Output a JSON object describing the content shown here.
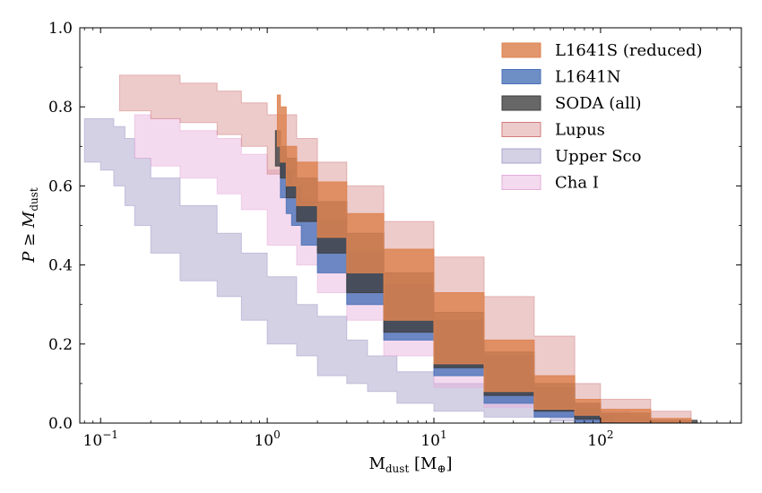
{
  "chart_data": {
    "type": "area",
    "xscale": "log",
    "xlim": [
      0.075,
      700
    ],
    "ylim": [
      0,
      1.0
    ],
    "xlabel": {
      "base": "M",
      "sub": "dust",
      "unit_open": " [M",
      "unit_sub": "⊕",
      "unit_close": "]"
    },
    "ylabel": {
      "lead": "P ≥ M",
      "sub": "dust"
    },
    "x_ticks": [
      {
        "value": 0.1,
        "base": "10",
        "exp": "−1"
      },
      {
        "value": 1,
        "base": "10",
        "exp": "0"
      },
      {
        "value": 10,
        "base": "10",
        "exp": "1"
      },
      {
        "value": 100,
        "base": "10",
        "exp": "2"
      }
    ],
    "y_ticks": [
      "0.0",
      "0.2",
      "0.4",
      "0.6",
      "0.8",
      "1.0"
    ],
    "grid": false,
    "legend_position": "top-right",
    "series": [
      {
        "name": "Upper Sco",
        "color": "#a9a4cc",
        "opacity": 0.5,
        "points": [
          [
            0.08,
            0.77,
            0.66
          ],
          [
            0.1,
            0.77,
            0.66
          ],
          [
            0.12,
            0.75,
            0.64
          ],
          [
            0.14,
            0.72,
            0.6
          ],
          [
            0.16,
            0.67,
            0.55
          ],
          [
            0.2,
            0.62,
            0.5
          ],
          [
            0.3,
            0.55,
            0.43
          ],
          [
            0.5,
            0.48,
            0.36
          ],
          [
            0.7,
            0.43,
            0.32
          ],
          [
            1.0,
            0.37,
            0.26
          ],
          [
            1.5,
            0.3,
            0.2
          ],
          [
            2.0,
            0.27,
            0.17
          ],
          [
            3.0,
            0.21,
            0.12
          ],
          [
            4.0,
            0.17,
            0.1
          ],
          [
            6.0,
            0.13,
            0.08
          ],
          [
            10,
            0.1,
            0.05
          ],
          [
            20,
            0.07,
            0.03
          ],
          [
            50,
            0.05,
            0.015
          ],
          [
            100,
            0.03,
            0.005
          ],
          [
            150,
            0.015,
            0.0
          ],
          [
            200,
            0.005,
            0.0
          ]
        ]
      },
      {
        "name": "Cha I",
        "color": "#e6aedb",
        "opacity": 0.45,
        "points": [
          [
            0.16,
            0.78,
            0.68
          ],
          [
            0.2,
            0.77,
            0.67
          ],
          [
            0.3,
            0.74,
            0.65
          ],
          [
            0.5,
            0.72,
            0.62
          ],
          [
            0.7,
            0.68,
            0.58
          ],
          [
            1.0,
            0.64,
            0.54
          ],
          [
            1.5,
            0.57,
            0.45
          ],
          [
            2.0,
            0.52,
            0.4
          ],
          [
            3.0,
            0.44,
            0.33
          ],
          [
            5.0,
            0.35,
            0.26
          ],
          [
            10,
            0.24,
            0.17
          ],
          [
            20,
            0.16,
            0.09
          ],
          [
            40,
            0.09,
            0.04
          ],
          [
            70,
            0.05,
            0.015
          ],
          [
            100,
            0.025,
            0.005
          ],
          [
            150,
            0.01,
            0.0
          ]
        ]
      },
      {
        "name": "Lupus",
        "color": "#d27c7c",
        "opacity": 0.4,
        "points": [
          [
            0.13,
            0.88,
            0.79
          ],
          [
            0.2,
            0.88,
            0.79
          ],
          [
            0.3,
            0.86,
            0.77
          ],
          [
            0.5,
            0.84,
            0.76
          ],
          [
            0.7,
            0.81,
            0.73
          ],
          [
            1.0,
            0.78,
            0.7
          ],
          [
            1.5,
            0.72,
            0.63
          ],
          [
            2.0,
            0.66,
            0.56
          ],
          [
            3.0,
            0.6,
            0.48
          ],
          [
            5.0,
            0.51,
            0.39
          ],
          [
            10,
            0.42,
            0.29
          ],
          [
            20,
            0.32,
            0.2
          ],
          [
            40,
            0.22,
            0.12
          ],
          [
            70,
            0.1,
            0.04
          ],
          [
            100,
            0.06,
            0.02
          ],
          [
            200,
            0.03,
            0.005
          ],
          [
            350,
            0.005,
            0.0
          ]
        ]
      },
      {
        "name": "L1641N",
        "color": "#4a72b8",
        "opacity": 0.8,
        "points": [
          [
            1.2,
            0.66,
            0.57
          ],
          [
            1.3,
            0.64,
            0.57
          ],
          [
            1.4,
            0.6,
            0.53
          ],
          [
            1.6,
            0.56,
            0.5
          ],
          [
            2.0,
            0.51,
            0.45
          ],
          [
            3.0,
            0.43,
            0.38
          ],
          [
            5.0,
            0.35,
            0.3
          ],
          [
            10,
            0.26,
            0.21
          ],
          [
            20,
            0.17,
            0.12
          ],
          [
            40,
            0.09,
            0.05
          ],
          [
            70,
            0.04,
            0.015
          ],
          [
            100,
            0.02,
            0.0
          ],
          [
            120,
            0.005,
            0.0
          ]
        ]
      },
      {
        "name": "SODA (all)",
        "color": "#3c3c3c",
        "opacity": 0.78,
        "points": [
          [
            1.12,
            0.74,
            0.67
          ],
          [
            1.2,
            0.7,
            0.65
          ],
          [
            1.3,
            0.67,
            0.62
          ],
          [
            1.5,
            0.62,
            0.57
          ],
          [
            2.0,
            0.56,
            0.51
          ],
          [
            3.0,
            0.48,
            0.43
          ],
          [
            5.0,
            0.38,
            0.33
          ],
          [
            10,
            0.28,
            0.23
          ],
          [
            20,
            0.18,
            0.14
          ],
          [
            40,
            0.1,
            0.07
          ],
          [
            70,
            0.05,
            0.03
          ],
          [
            100,
            0.025,
            0.01
          ],
          [
            200,
            0.007,
            0.0
          ],
          [
            380,
            0.003,
            0.0
          ]
        ]
      },
      {
        "name": "L1641S (reduced)",
        "color": "#dd8452",
        "opacity": 0.85,
        "points": [
          [
            1.15,
            0.83,
            0.71
          ],
          [
            1.2,
            0.8,
            0.7
          ],
          [
            1.3,
            0.7,
            0.66
          ],
          [
            1.5,
            0.66,
            0.6
          ],
          [
            2.0,
            0.61,
            0.55
          ],
          [
            3.0,
            0.53,
            0.47
          ],
          [
            5.0,
            0.44,
            0.38
          ],
          [
            10,
            0.33,
            0.26
          ],
          [
            20,
            0.21,
            0.15
          ],
          [
            40,
            0.12,
            0.08
          ],
          [
            70,
            0.06,
            0.035
          ],
          [
            100,
            0.035,
            0.02
          ],
          [
            200,
            0.012,
            0.003
          ],
          [
            350,
            0.002,
            0.0
          ]
        ]
      }
    ],
    "legend": [
      "L1641S (reduced)",
      "L1641N",
      "SODA (all)",
      "Lupus",
      "Upper Sco",
      "Cha I"
    ]
  }
}
